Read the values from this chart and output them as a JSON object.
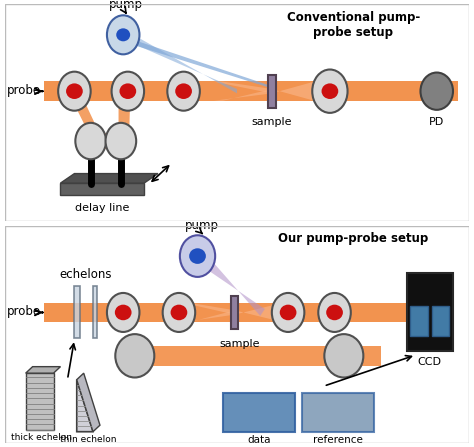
{
  "fig_width": 4.74,
  "fig_height": 4.47,
  "dpi": 100,
  "bg_color": "#ffffff",
  "border_color": "#bbbbbb",
  "orange": "#f08030",
  "orange_light": "#f8b080",
  "blue_beam": "#80a8d8",
  "blue_beam_light": "#a8c8e8",
  "purple_beam": "#b090c8",
  "purple_beam_light": "#c8a8e0",
  "red_spot": "#cc1010",
  "blue_spot": "#2050c0",
  "mirror_face": "#d0d0d0",
  "mirror_edge": "#606060",
  "sample_face": "#9080a0",
  "pd_face": "#808080",
  "ccd_face": "#101010",
  "ccd_win": "#4888b8",
  "text_color": "#000000",
  "title_top": "Conventional pump-\nprobe setup",
  "title_bot": "Our pump-probe setup",
  "lbl_pump": "pump",
  "lbl_probe": "probe",
  "lbl_sample": "sample",
  "lbl_pd": "PD",
  "lbl_ccd": "CCD",
  "lbl_delay": "delay line",
  "lbl_echelons": "echelons",
  "lbl_thick": "thick echelon",
  "lbl_thin": "thin echelon",
  "lbl_data": "data",
  "lbl_ref": "reference"
}
